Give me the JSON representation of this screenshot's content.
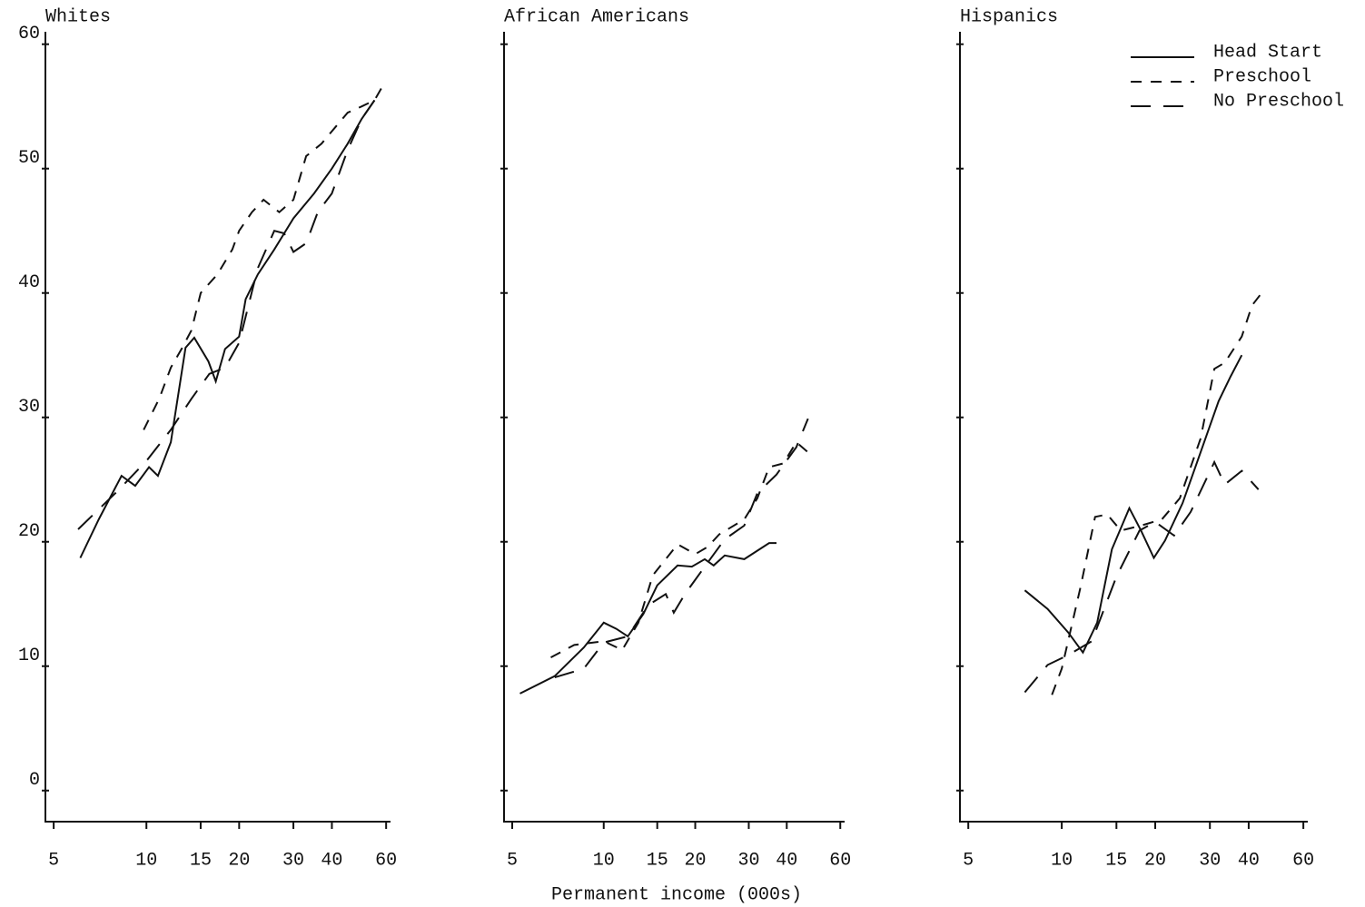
{
  "chart_data": [
    {
      "type": "line",
      "title": "Whites",
      "xscale": "log",
      "show_ytick_labels": true,
      "xlim": [
        4.7,
        62
      ],
      "xticks": [
        5,
        10,
        15,
        20,
        30,
        40,
        60
      ],
      "ylim": [
        -2.5,
        61
      ],
      "yticks": [
        0,
        10,
        20,
        30,
        40,
        50,
        60
      ],
      "series": [
        {
          "color": "#111111",
          "style": "solid",
          "x": [
            6.1,
            7,
            8.3,
            9.2,
            10.2,
            10.9,
            12,
            13.4,
            14.3,
            15.9,
            16.8,
            18,
            20,
            21,
            23,
            26,
            30,
            35,
            40,
            45,
            50,
            55
          ],
          "values": [
            18.7,
            21.8,
            25.3,
            24.5,
            26,
            25.3,
            28,
            35.6,
            36.4,
            34.5,
            32.9,
            35.5,
            36.5,
            39.5,
            41.5,
            43.5,
            46,
            48,
            50,
            52,
            54,
            55.5
          ]
        },
        {
          "color": "#111111",
          "style": "dashed",
          "x": [
            9.8,
            11,
            12,
            13,
            14,
            15,
            17,
            19,
            20,
            22,
            24,
            27,
            30,
            33,
            37,
            40,
            45,
            50,
            55,
            58
          ],
          "values": [
            29,
            31.5,
            34,
            35.5,
            37,
            40,
            41.5,
            43.5,
            45,
            46.5,
            47.5,
            46.5,
            47.5,
            51,
            52,
            53,
            54.5,
            55,
            55.5,
            56.5
          ]
        },
        {
          "color": "#111111",
          "style": "longdash",
          "x": [
            6,
            8,
            10,
            12,
            14,
            16,
            18,
            20,
            23,
            26,
            28,
            30,
            33,
            36,
            40,
            45,
            50,
            55
          ],
          "values": [
            21,
            24,
            26.5,
            29,
            31.5,
            33.5,
            34,
            36,
            42,
            45,
            44.8,
            43.3,
            44,
            46.5,
            48,
            51.5,
            54,
            55.5
          ]
        }
      ]
    },
    {
      "type": "line",
      "title": "African Americans",
      "xlabel": "Permanent income (000s)",
      "xscale": "log",
      "show_ytick_labels": false,
      "xlim": [
        4.7,
        62
      ],
      "xticks": [
        5,
        10,
        15,
        20,
        30,
        40,
        60
      ],
      "ylim": [
        -2.5,
        61
      ],
      "yticks": [
        0,
        10,
        20,
        30,
        40,
        50,
        60
      ],
      "series": [
        {
          "color": "#111111",
          "style": "solid",
          "x": [
            5.3,
            6.9,
            8.6,
            10,
            11,
            12,
            13.5,
            15,
            17.5,
            19.5,
            21.5,
            23,
            25,
            29,
            35,
            37
          ],
          "values": [
            7.8,
            9.2,
            11.5,
            13.5,
            13,
            12.4,
            14.2,
            16.5,
            18.1,
            18,
            18.6,
            18.1,
            18.9,
            18.6,
            19.9,
            19.9
          ]
        },
        {
          "color": "#111111",
          "style": "dashed",
          "x": [
            6.7,
            8,
            10,
            11.5,
            13,
            14.5,
            17.5,
            20,
            22,
            24,
            29,
            32,
            35,
            39,
            43,
            48
          ],
          "values": [
            10.7,
            11.7,
            12,
            11.3,
            13.5,
            17.3,
            19.8,
            19,
            19.6,
            20.6,
            21.8,
            23.5,
            26,
            26.3,
            28,
            27
          ]
        },
        {
          "color": "#111111",
          "style": "longdash",
          "x": [
            6.9,
            8.6,
            10,
            12,
            14,
            16,
            17,
            18.5,
            21.5,
            25,
            29,
            32,
            37,
            43,
            47
          ],
          "values": [
            9.1,
            9.8,
            11.9,
            12.4,
            14.9,
            15.8,
            14.3,
            15.8,
            18,
            20.2,
            21.3,
            23.9,
            25.4,
            27.6,
            29.9
          ]
        }
      ]
    },
    {
      "type": "line",
      "title": "Hispanics",
      "xscale": "log",
      "show_ytick_labels": false,
      "legend": "upper right",
      "xlim": [
        4.7,
        62
      ],
      "xticks": [
        5,
        10,
        15,
        20,
        30,
        40,
        60
      ],
      "ylim": [
        -2.5,
        61
      ],
      "yticks": [
        0,
        10,
        20,
        30,
        40,
        50,
        60
      ],
      "series": [
        {
          "name": "Head Start",
          "color": "#111111",
          "style": "solid",
          "x": [
            7.6,
            9,
            10.5,
            11.7,
            13,
            14.5,
            16.5,
            18,
            19.8,
            21.5,
            24.5,
            28,
            32,
            35,
            38
          ],
          "values": [
            16.1,
            14.6,
            12.7,
            11.1,
            13.5,
            19.4,
            22.7,
            20.9,
            18.7,
            20.1,
            23.1,
            27.2,
            31.3,
            33.3,
            35
          ]
        },
        {
          "name": "Preschool",
          "color": "#111111",
          "style": "dashed",
          "x": [
            9.3,
            10,
            11.5,
            12.8,
            14,
            15.5,
            18,
            21,
            24,
            28,
            31,
            33.5,
            38,
            41,
            45
          ],
          "values": [
            7.7,
            9.8,
            16.4,
            22,
            22.2,
            20.9,
            21.3,
            21.8,
            23.5,
            28.3,
            33.9,
            34.4,
            36.5,
            39,
            40.3
          ]
        },
        {
          "name": "No Preschool",
          "color": "#111111",
          "style": "longdash",
          "x": [
            7.6,
            9,
            10.5,
            12.5,
            15,
            17.8,
            20,
            23,
            26,
            31,
            33.5,
            38,
            43
          ],
          "values": [
            7.9,
            10.1,
            10.9,
            12,
            17.2,
            20.9,
            21.6,
            20.5,
            22.4,
            26.4,
            24.6,
            25.7,
            24.2
          ]
        }
      ]
    }
  ]
}
